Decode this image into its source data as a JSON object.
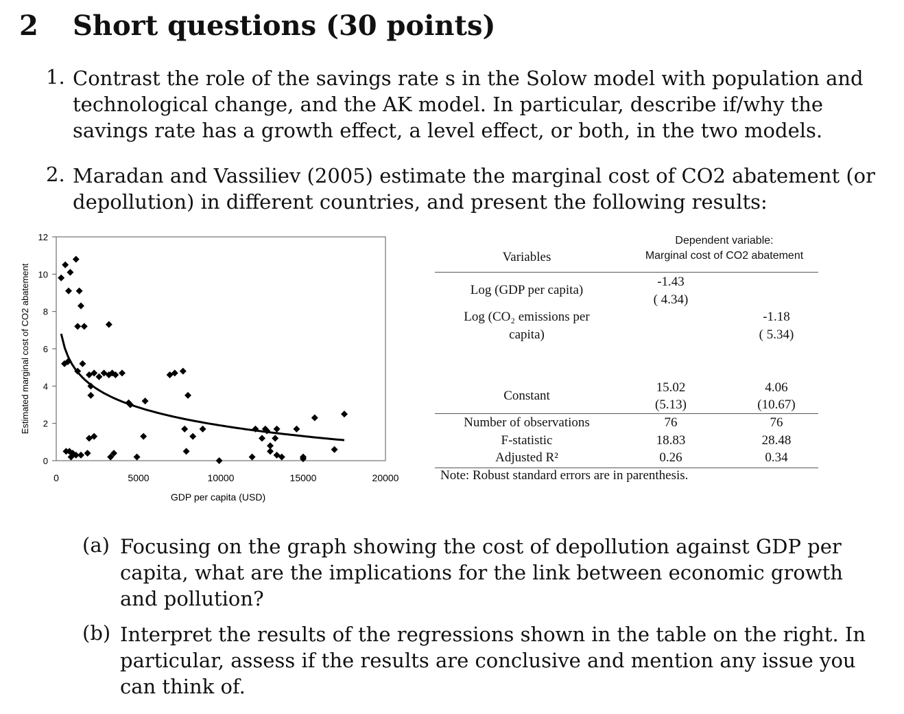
{
  "section": {
    "number": "2",
    "title": "Short questions (30 points)"
  },
  "questions": [
    {
      "number": "1.",
      "lines": [
        "Contrast the role of the savings rate s in the Solow model with population and",
        "technological change, and the AK model.  In particular, describe if/why the",
        "savings rate has a growth effect, a level effect, or both, in the two models."
      ]
    },
    {
      "number": "2.",
      "lines": [
        "Maradan and Vassiliev (2005) estimate the marginal cost of CO2 abatement (or",
        "depollution) in different countries, and present the following results:"
      ]
    }
  ],
  "subquestions": [
    {
      "label": "(a)",
      "lines": [
        "Focusing on the graph showing the cost of depollution against GDP per",
        "capita, what are the implications for the link between economic growth",
        "and pollution?"
      ]
    },
    {
      "label": "(b)",
      "lines": [
        "Interpret the results of the regressions shown in the table on the right. In",
        "particular, assess if the results are conclusive and mention any issue you",
        "can think of."
      ]
    }
  ],
  "chart_data": {
    "type": "scatter",
    "xlabel": "GDP per capita (USD)",
    "ylabel": "Estimated marginal cost of CO2 abatement",
    "xlim": [
      0,
      20000
    ],
    "ylim": [
      0,
      12
    ],
    "x_ticks": [
      "0",
      "5000",
      "10000",
      "15000",
      "20000"
    ],
    "y_ticks": [
      "0",
      "2",
      "4",
      "6",
      "8",
      "10",
      "12"
    ],
    "grid": false,
    "points": [
      [
        300,
        9.8
      ],
      [
        550,
        10.5
      ],
      [
        850,
        10.1
      ],
      [
        1200,
        10.8
      ],
      [
        750,
        9.1
      ],
      [
        1400,
        9.1
      ],
      [
        1500,
        8.3
      ],
      [
        1300,
        7.2
      ],
      [
        1700,
        7.2
      ],
      [
        3200,
        7.3
      ],
      [
        500,
        5.2
      ],
      [
        700,
        5.3
      ],
      [
        1300,
        4.8
      ],
      [
        1600,
        5.2
      ],
      [
        2000,
        4.6
      ],
      [
        2300,
        4.7
      ],
      [
        2600,
        4.5
      ],
      [
        2900,
        4.7
      ],
      [
        3200,
        4.6
      ],
      [
        3400,
        4.7
      ],
      [
        3600,
        4.6
      ],
      [
        4000,
        4.7
      ],
      [
        2100,
        4.0
      ],
      [
        2100,
        3.5
      ],
      [
        4400,
        3.1
      ],
      [
        4500,
        3.0
      ],
      [
        5400,
        3.2
      ],
      [
        6900,
        4.6
      ],
      [
        7200,
        4.7
      ],
      [
        7700,
        4.8
      ],
      [
        8000,
        3.5
      ],
      [
        7800,
        1.7
      ],
      [
        8300,
        1.3
      ],
      [
        8900,
        1.7
      ],
      [
        2000,
        1.2
      ],
      [
        2300,
        1.3
      ],
      [
        5300,
        1.3
      ],
      [
        7900,
        0.5
      ],
      [
        800,
        0.5
      ],
      [
        1000,
        0.4
      ],
      [
        600,
        0.5
      ],
      [
        900,
        0.2
      ],
      [
        1200,
        0.3
      ],
      [
        1500,
        0.3
      ],
      [
        1900,
        0.4
      ],
      [
        3300,
        0.2
      ],
      [
        3500,
        0.4
      ],
      [
        4900,
        0.2
      ],
      [
        9900,
        0.0
      ],
      [
        11900,
        0.2
      ],
      [
        12100,
        1.7
      ],
      [
        12500,
        1.2
      ],
      [
        12700,
        1.7
      ],
      [
        12800,
        1.6
      ],
      [
        13000,
        0.8
      ],
      [
        13000,
        0.5
      ],
      [
        13300,
        1.2
      ],
      [
        13400,
        1.7
      ],
      [
        13400,
        0.3
      ],
      [
        13700,
        0.2
      ],
      [
        14600,
        1.7
      ],
      [
        15000,
        0.2
      ],
      [
        15000,
        0.1
      ],
      [
        15700,
        2.3
      ],
      [
        16900,
        0.6
      ],
      [
        17500,
        2.5
      ]
    ],
    "fit": {
      "type": "log",
      "x_range": [
        300,
        17500
      ],
      "y_at_start": 6.8,
      "y_at_end": 1.1
    }
  },
  "regression_table": {
    "header_left": "Variables",
    "header_right_line1": "Dependent variable:",
    "header_right_line2": "Marginal cost of CO2 abatement",
    "rows": [
      {
        "label1": "Log (GDP per capita)",
        "label2": "",
        "col1_coef": "-1.43",
        "col1_se": "( 4.34)",
        "col2_coef": "",
        "col2_se": ""
      },
      {
        "label1": "Log (CO₂ emissions per",
        "label2": "capita)",
        "col1_coef": "",
        "col1_se": "",
        "col2_coef": "-1.18",
        "col2_se": "( 5.34)"
      },
      {
        "label1": "Constant",
        "label2": "",
        "col1_coef": "15.02",
        "col1_se": "(5.13)",
        "col2_coef": "4.06",
        "col2_se": "(10.67)"
      }
    ],
    "stats": [
      {
        "label": "Number of observations",
        "col1": "76",
        "col2": "76"
      },
      {
        "label": "F-statistic",
        "col1": "18.83",
        "col2": "28.48"
      },
      {
        "label": "Adjusted R²",
        "col1": "0.26",
        "col2": "0.34"
      }
    ],
    "note": "Note: Robust standard errors are in parenthesis."
  }
}
